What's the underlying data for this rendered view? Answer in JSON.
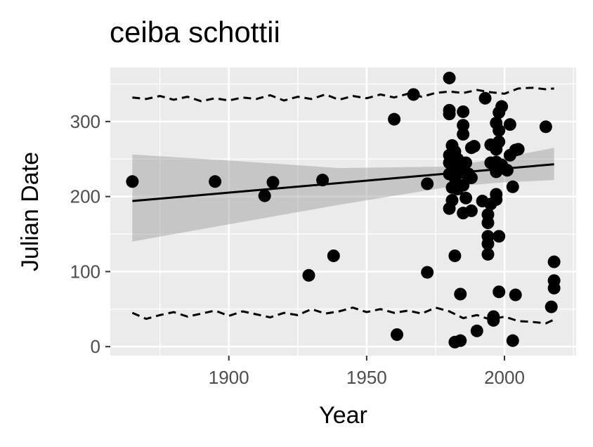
{
  "chart_data": {
    "type": "scatter",
    "title": "ceiba schottii",
    "xlabel": "Year",
    "ylabel": "Julian Date",
    "xlim": [
      1857,
      2026
    ],
    "ylim": [
      -12,
      372
    ],
    "x_ticks": [
      1900,
      1950,
      2000
    ],
    "y_ticks": [
      0,
      100,
      200,
      300
    ],
    "grid": true,
    "points": [
      {
        "x": 1865,
        "y": 220
      },
      {
        "x": 1895,
        "y": 220
      },
      {
        "x": 1913,
        "y": 201
      },
      {
        "x": 1916,
        "y": 219
      },
      {
        "x": 1929,
        "y": 95
      },
      {
        "x": 1934,
        "y": 222
      },
      {
        "x": 1938,
        "y": 121
      },
      {
        "x": 1960,
        "y": 303
      },
      {
        "x": 1961,
        "y": 16
      },
      {
        "x": 1967,
        "y": 336
      },
      {
        "x": 1972,
        "y": 99
      },
      {
        "x": 1972,
        "y": 217
      },
      {
        "x": 1980,
        "y": 358
      },
      {
        "x": 1980,
        "y": 315
      },
      {
        "x": 1980,
        "y": 310
      },
      {
        "x": 1980,
        "y": 255
      },
      {
        "x": 1980,
        "y": 245
      },
      {
        "x": 1980,
        "y": 230
      },
      {
        "x": 1980,
        "y": 184
      },
      {
        "x": 1981,
        "y": 268
      },
      {
        "x": 1981,
        "y": 212
      },
      {
        "x": 1981,
        "y": 195
      },
      {
        "x": 1982,
        "y": 260
      },
      {
        "x": 1982,
        "y": 240
      },
      {
        "x": 1982,
        "y": 225
      },
      {
        "x": 1982,
        "y": 121
      },
      {
        "x": 1982,
        "y": 6
      },
      {
        "x": 1983,
        "y": 250
      },
      {
        "x": 1983,
        "y": 210
      },
      {
        "x": 1984,
        "y": 232
      },
      {
        "x": 1984,
        "y": 70
      },
      {
        "x": 1984,
        "y": 8
      },
      {
        "x": 1985,
        "y": 313
      },
      {
        "x": 1985,
        "y": 295
      },
      {
        "x": 1985,
        "y": 283
      },
      {
        "x": 1985,
        "y": 215
      },
      {
        "x": 1985,
        "y": 178
      },
      {
        "x": 1986,
        "y": 198
      },
      {
        "x": 1986,
        "y": 245
      },
      {
        "x": 1987,
        "y": 230
      },
      {
        "x": 1987,
        "y": 225
      },
      {
        "x": 1988,
        "y": 265
      },
      {
        "x": 1988,
        "y": 225
      },
      {
        "x": 1988,
        "y": 181
      },
      {
        "x": 1989,
        "y": 267
      },
      {
        "x": 1990,
        "y": 21
      },
      {
        "x": 1992,
        "y": 194
      },
      {
        "x": 1993,
        "y": 331
      },
      {
        "x": 1994,
        "y": 176
      },
      {
        "x": 1994,
        "y": 165
      },
      {
        "x": 1994,
        "y": 147
      },
      {
        "x": 1994,
        "y": 137
      },
      {
        "x": 1994,
        "y": 123
      },
      {
        "x": 1995,
        "y": 245
      },
      {
        "x": 1995,
        "y": 269
      },
      {
        "x": 1995,
        "y": 190
      },
      {
        "x": 1996,
        "y": 40
      },
      {
        "x": 1996,
        "y": 35
      },
      {
        "x": 1997,
        "y": 298
      },
      {
        "x": 1997,
        "y": 263
      },
      {
        "x": 1997,
        "y": 246
      },
      {
        "x": 1997,
        "y": 233
      },
      {
        "x": 1997,
        "y": 203
      },
      {
        "x": 1997,
        "y": 196
      },
      {
        "x": 1998,
        "y": 312
      },
      {
        "x": 1998,
        "y": 288
      },
      {
        "x": 1998,
        "y": 273
      },
      {
        "x": 1998,
        "y": 147
      },
      {
        "x": 1998,
        "y": 73
      },
      {
        "x": 1999,
        "y": 320
      },
      {
        "x": 1999,
        "y": 242
      },
      {
        "x": 2001,
        "y": 235
      },
      {
        "x": 2002,
        "y": 296
      },
      {
        "x": 2002,
        "y": 255
      },
      {
        "x": 2003,
        "y": 213
      },
      {
        "x": 2003,
        "y": 8
      },
      {
        "x": 2004,
        "y": 69
      },
      {
        "x": 2004,
        "y": 262
      },
      {
        "x": 2005,
        "y": 263
      },
      {
        "x": 2015,
        "y": 293
      },
      {
        "x": 2017,
        "y": 53
      },
      {
        "x": 2018,
        "y": 113
      },
      {
        "x": 2018,
        "y": 88
      },
      {
        "x": 2018,
        "y": 78
      }
    ],
    "trend_line": {
      "x": [
        1865,
        2018
      ],
      "y": [
        194,
        243
      ]
    },
    "confidence_band": {
      "x": [
        1865,
        1900,
        1940,
        1980,
        2000,
        2018
      ],
      "lower": [
        140,
        163,
        189,
        213,
        219,
        222
      ],
      "upper": [
        256,
        248,
        238,
        240,
        252,
        265
      ]
    },
    "upper_dashed_line": {
      "x": [
        1865,
        1870,
        1875,
        1880,
        1885,
        1890,
        1895,
        1900,
        1905,
        1910,
        1915,
        1920,
        1925,
        1930,
        1935,
        1940,
        1945,
        1950,
        1955,
        1960,
        1965,
        1970,
        1975,
        1980,
        1985,
        1990,
        1995,
        2000,
        2005,
        2010,
        2015,
        2018
      ],
      "y": [
        332,
        330,
        334,
        329,
        333,
        327,
        331,
        328,
        332,
        330,
        335,
        328,
        333,
        330,
        336,
        329,
        334,
        331,
        336,
        332,
        337,
        333,
        338,
        340,
        338,
        342,
        339,
        337,
        344,
        345,
        343,
        344
      ]
    },
    "lower_dashed_line": {
      "x": [
        1865,
        1870,
        1875,
        1880,
        1885,
        1890,
        1895,
        1900,
        1905,
        1910,
        1915,
        1920,
        1925,
        1930,
        1935,
        1940,
        1945,
        1950,
        1955,
        1960,
        1965,
        1970,
        1975,
        1980,
        1985,
        1990,
        1995,
        2000,
        2005,
        2010,
        2015,
        2018
      ],
      "y": [
        45,
        37,
        42,
        46,
        40,
        44,
        48,
        41,
        47,
        43,
        39,
        45,
        42,
        50,
        44,
        47,
        52,
        46,
        50,
        45,
        48,
        44,
        52,
        47,
        38,
        42,
        36,
        40,
        34,
        33,
        31,
        36
      ]
    }
  }
}
